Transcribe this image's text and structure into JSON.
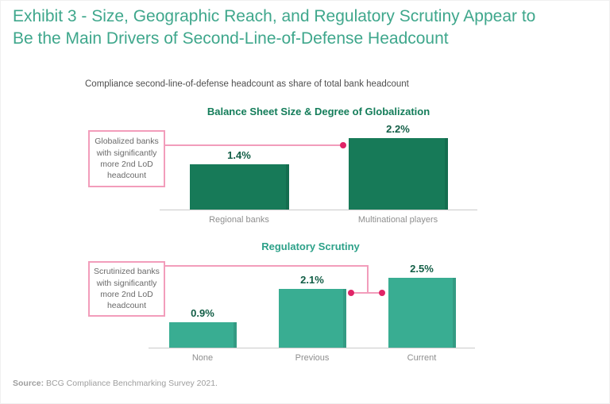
{
  "header": {
    "title_line1": "Exhibit 3 - Size, Geographic Reach, and Regulatory Scrutiny Appear to",
    "title_line2": "Be the Main Drivers of Second-Line-of-Defense Headcount"
  },
  "subtitle": "Compliance second-line-of-defense headcount as share of total bank headcount",
  "source": {
    "prefix": "Source:",
    "text": " BCG Compliance Benchmarking Survey 2021."
  },
  "colors": {
    "exhibit_title": "#3fa78c",
    "subtitle": "#4f4f4f",
    "value_label": "#125e46",
    "category_label": "#8e8e8e",
    "axis_line": "#c9c9c9",
    "annotation_text": "#6a6a6a",
    "annotation_border": "#f29dbb",
    "connector_line": "#f29dbb",
    "connector_dot": "#e02467",
    "source_text": "#9e9e9e"
  },
  "chart_data": [
    {
      "type": "bar",
      "title": "Balance Sheet Size & Degree of Globalization",
      "title_color": "#147d5a",
      "bar_color": "#177a58",
      "categories": [
        "Regional banks",
        "Multinational players"
      ],
      "values": [
        1.4,
        2.2
      ],
      "value_labels": [
        "1.4%",
        "2.2%"
      ],
      "annotation": "Globalized banks with significantly more 2nd LoD headcount",
      "legend": "none",
      "gridlines": false
    },
    {
      "type": "bar",
      "title": "Regulatory Scrutiny",
      "title_color": "#2da189",
      "bar_color": "#39ad92",
      "categories": [
        "None",
        "Previous",
        "Current"
      ],
      "values": [
        0.9,
        2.1,
        2.5
      ],
      "value_labels": [
        "0.9%",
        "2.1%",
        "2.5%"
      ],
      "annotation": "Scrutinized banks with significantly more 2nd LoD headcount",
      "legend": "none",
      "gridlines": false
    }
  ]
}
